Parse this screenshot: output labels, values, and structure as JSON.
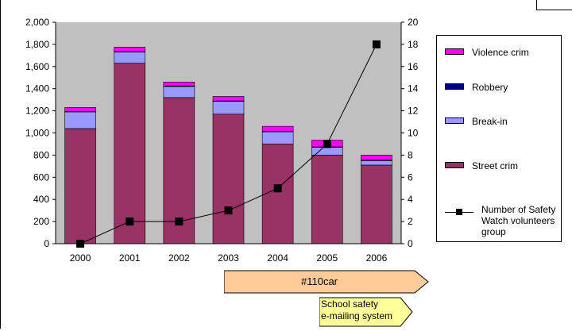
{
  "chart_data": {
    "type": "bar",
    "stacked": true,
    "categories": [
      "2000",
      "2001",
      "2002",
      "2003",
      "2004",
      "2005",
      "2006"
    ],
    "series": [
      {
        "name": "Street crim",
        "color": "#993366",
        "values": [
          1040,
          1630,
          1320,
          1170,
          900,
          800,
          710
        ]
      },
      {
        "name": "Break-in",
        "color": "#9999ff",
        "values": [
          150,
          100,
          100,
          115,
          110,
          70,
          40
        ]
      },
      {
        "name": "Robbery",
        "color": "#000080",
        "values": [
          5,
          5,
          5,
          5,
          5,
          5,
          5
        ]
      },
      {
        "name": "Violence crim",
        "color": "#ff00ff",
        "values": [
          35,
          40,
          35,
          40,
          45,
          60,
          45
        ]
      }
    ],
    "line_series": {
      "name": "Number of Safety\nWatch volunteers\ngroup",
      "color": "#000000",
      "axis": "right",
      "values": [
        0,
        2,
        2,
        3,
        5,
        9,
        18
      ]
    },
    "left_axis": {
      "ylim": [
        0,
        2000
      ],
      "ticks": [
        "0",
        "200",
        "400",
        "600",
        "800",
        "1,000",
        "1,200",
        "1,400",
        "1,600",
        "1,800",
        "2,000"
      ]
    },
    "right_axis": {
      "ylim": [
        0,
        20
      ],
      "ticks": [
        "0",
        "2",
        "4",
        "6",
        "8",
        "10",
        "12",
        "14",
        "16",
        "18",
        "20"
      ]
    },
    "plot_background": "#c0c0c0",
    "grid": false,
    "legend_position": "right",
    "legend_order": [
      "Violence crim",
      "Robbery",
      "Break-in",
      "Street crim",
      "Number of Safety\nWatch volunteers\ngroup"
    ]
  },
  "annotations": {
    "car_arrow": {
      "label": "#110car",
      "color": "#ffcc99"
    },
    "email_box": {
      "label": "School safety\ne-mailing system",
      "color": "#ffff99"
    }
  }
}
